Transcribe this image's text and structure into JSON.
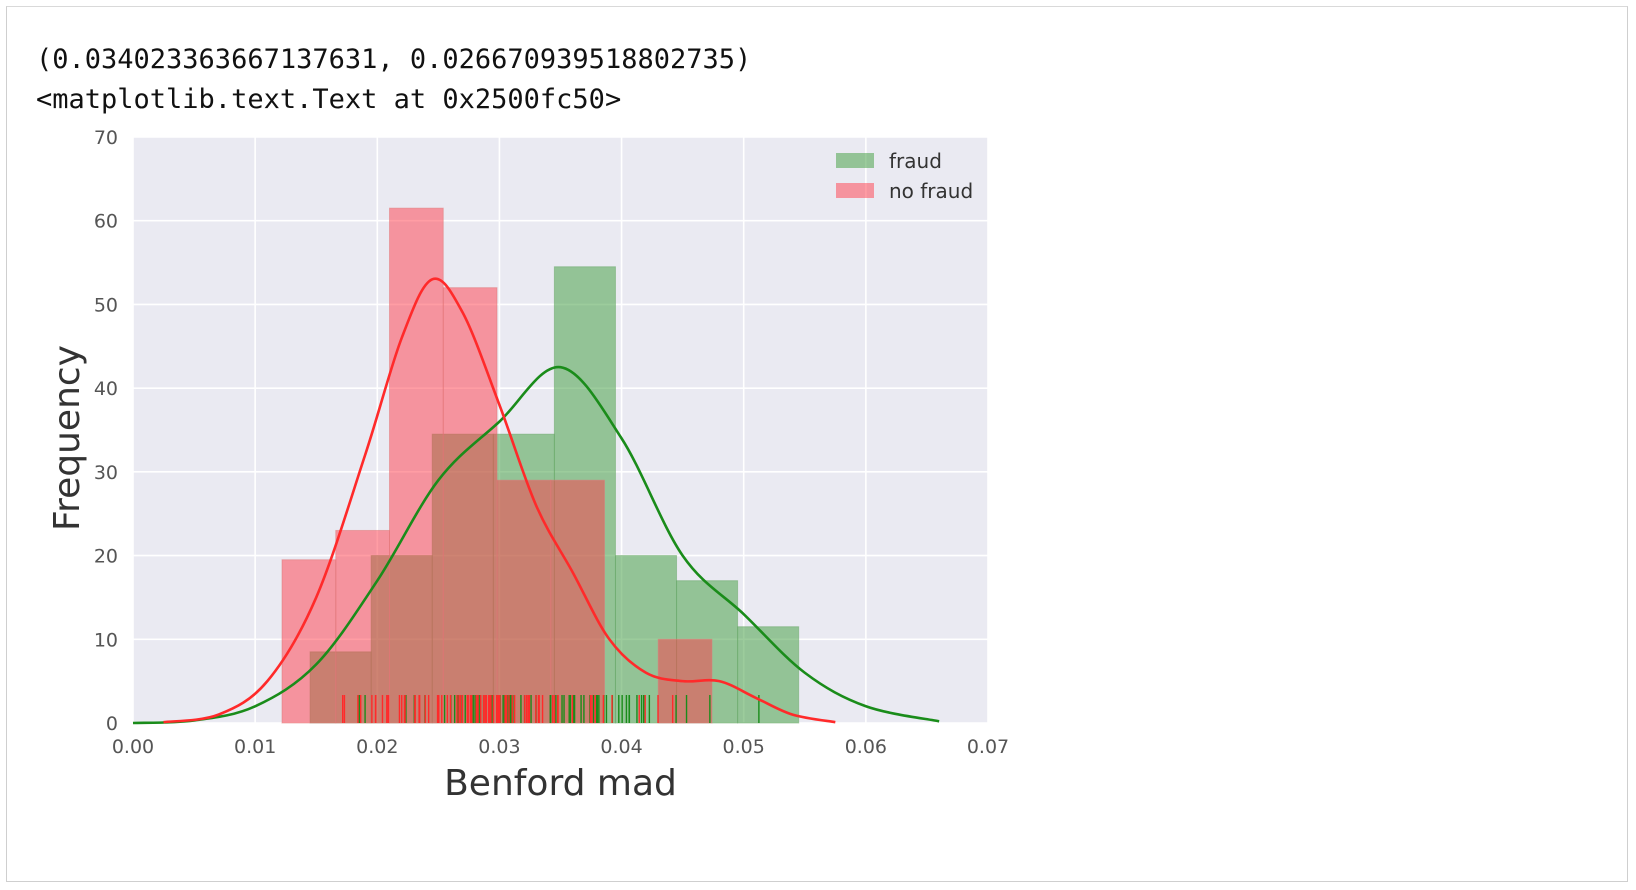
{
  "output": {
    "line1": "(0.034023363667137631, 0.026670939518802735)",
    "line2": "<matplotlib.text.Text at 0x2500fc50>"
  },
  "colors": {
    "plot_bg": "#eaeaf2",
    "grid": "#ffffff",
    "fraud_fill": "#89c189",
    "nofraud_fill": "#f38a92",
    "overlap_fill": "#b56a55",
    "fraud_line": "#1a8c1a",
    "nofraud_line": "#ff2a2a",
    "tick_text": "#555555",
    "label_text": "#333333"
  },
  "chart_data": {
    "type": "histogram",
    "title": "",
    "xlabel": "Benford mad",
    "ylabel": "Frequency",
    "xlim": [
      0.0,
      0.07
    ],
    "ylim": [
      0,
      70
    ],
    "xticks": [
      "0.00",
      "0.01",
      "0.02",
      "0.03",
      "0.04",
      "0.05",
      "0.06",
      "0.07"
    ],
    "yticks": [
      "0",
      "10",
      "20",
      "30",
      "40",
      "50",
      "60",
      "70"
    ],
    "grid": true,
    "legend": {
      "placement": "top-right",
      "entries": [
        "fraud",
        "no fraud"
      ]
    },
    "series": [
      {
        "name": "fraud",
        "bin_edges": [
          0.0145,
          0.0195,
          0.0245,
          0.0295,
          0.0345,
          0.0395,
          0.0445,
          0.0495,
          0.0545
        ],
        "counts": [
          8.5,
          20,
          34.5,
          34.5,
          54.5,
          20,
          17,
          11.5
        ],
        "kde_x": [
          0.0,
          0.005,
          0.01,
          0.015,
          0.02,
          0.025,
          0.03,
          0.035,
          0.04,
          0.045,
          0.05,
          0.055,
          0.06,
          0.066
        ],
        "kde_y": [
          0.0,
          0.3,
          2,
          7,
          17,
          29,
          36,
          42.5,
          34,
          20,
          13,
          6,
          2,
          0.2
        ]
      },
      {
        "name": "no fraud",
        "bin_edges": [
          0.0122,
          0.0166,
          0.021,
          0.0254,
          0.0298,
          0.0342,
          0.0386,
          0.043,
          0.0474
        ],
        "counts": [
          19.5,
          23,
          61.5,
          52,
          29,
          29,
          0,
          10
        ],
        "kde_x": [
          0.0025,
          0.007,
          0.011,
          0.015,
          0.019,
          0.022,
          0.0245,
          0.027,
          0.03,
          0.033,
          0.036,
          0.039,
          0.042,
          0.045,
          0.048,
          0.051,
          0.054,
          0.0575
        ],
        "kde_y": [
          0.1,
          1,
          5,
          15,
          32,
          46,
          53,
          49,
          38,
          26,
          18,
          10,
          6,
          5,
          5,
          3,
          1,
          0.1
        ]
      }
    ]
  }
}
